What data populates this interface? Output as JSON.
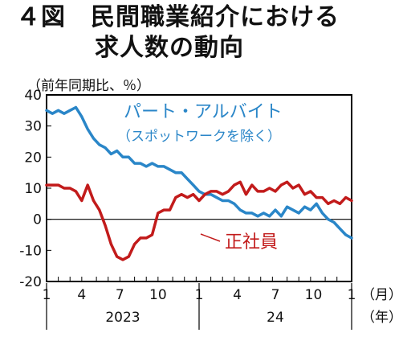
{
  "header": {
    "title_line1": "４図　民間職業紹介における",
    "title_line2": "求人数の動向",
    "unit": "（前年同期比、％）"
  },
  "chart_data": {
    "type": "line",
    "title": "４図　民間職業紹介における求人数の動向",
    "ylabel": "（前年同期比、％）",
    "ylim": [
      -20,
      40
    ],
    "yticks": [
      "40",
      "30",
      "20",
      "10",
      "0",
      "-10",
      "-20"
    ],
    "x_month_labels": [
      "1",
      "4",
      "7",
      "10",
      "1",
      "4",
      "7",
      "10",
      "1"
    ],
    "x_month_unit": "（月）",
    "x_year_labels": [
      "2023",
      "24"
    ],
    "x_year_unit": "（年）",
    "x_range": [
      0,
      104
    ],
    "x_ticks": [
      0,
      4,
      8,
      12,
      17,
      21,
      25,
      30,
      34,
      38,
      43,
      47,
      51,
      56,
      60,
      64,
      69,
      73,
      77,
      82,
      86,
      90,
      95,
      99,
      104
    ],
    "series": [
      {
        "name": "パート・アルバイト",
        "sublabel": "（スポットワークを除く）",
        "color": "#2a86c8",
        "x": [
          0,
          2,
          4,
          6,
          8,
          10,
          12,
          14,
          16,
          18,
          20,
          22,
          24,
          26,
          28,
          30,
          32,
          34,
          36,
          38,
          40,
          42,
          44,
          46,
          48,
          50,
          52,
          54,
          56,
          58,
          60,
          62,
          64,
          66,
          68,
          70,
          72,
          74,
          76,
          78,
          80,
          82,
          84,
          86,
          88,
          90,
          92,
          94,
          96,
          98,
          100,
          102,
          104
        ],
        "values": [
          35,
          34,
          35,
          34,
          35,
          36,
          33,
          29,
          26,
          24,
          23,
          21,
          22,
          20,
          20,
          18,
          18,
          17,
          18,
          17,
          17,
          16,
          15,
          15,
          13,
          11,
          9,
          8,
          8,
          7,
          6,
          6,
          5,
          3,
          2,
          2,
          1,
          2,
          1,
          3,
          1,
          4,
          3,
          2,
          4,
          3,
          5,
          2,
          0,
          -1,
          -3,
          -5,
          -6
        ]
      },
      {
        "name": "正社員",
        "color": "#c21b1b",
        "x": [
          0,
          2,
          4,
          6,
          8,
          10,
          12,
          14,
          16,
          18,
          20,
          22,
          24,
          26,
          28,
          30,
          32,
          34,
          36,
          38,
          40,
          42,
          44,
          46,
          48,
          50,
          52,
          54,
          56,
          58,
          60,
          62,
          64,
          66,
          68,
          70,
          72,
          74,
          76,
          78,
          80,
          82,
          84,
          86,
          88,
          90,
          92,
          94,
          96,
          98,
          100,
          102,
          104
        ],
        "values": [
          11,
          11,
          11,
          10,
          10,
          9,
          6,
          11,
          6,
          3,
          -2,
          -8,
          -12,
          -13,
          -12,
          -8,
          -6,
          -6,
          -5,
          2,
          3,
          3,
          7,
          8,
          7,
          8,
          6,
          8,
          9,
          9,
          8,
          9,
          11,
          12,
          8,
          11,
          9,
          9,
          10,
          9,
          11,
          12,
          10,
          11,
          8,
          9,
          7,
          7,
          5,
          6,
          5,
          7,
          6
        ]
      }
    ]
  }
}
